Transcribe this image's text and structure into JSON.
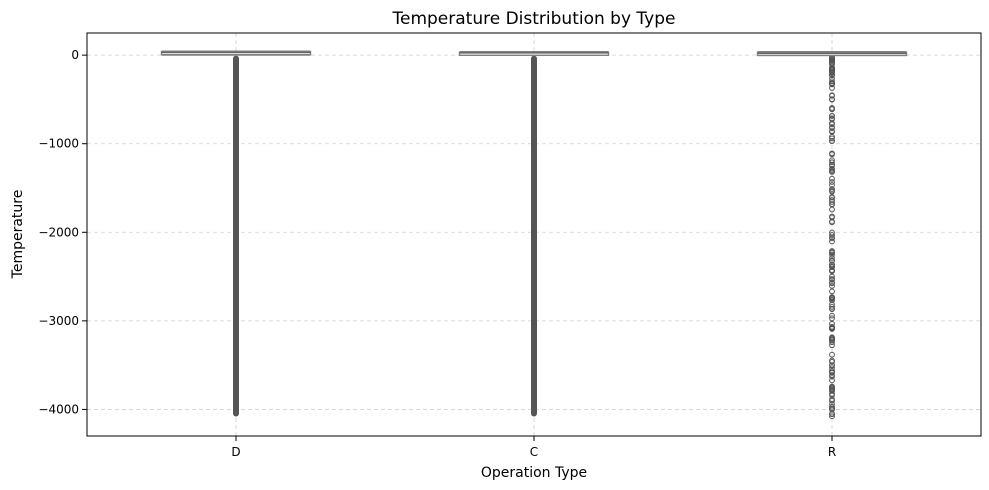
{
  "chart_data": {
    "type": "box",
    "title": "Temperature Distribution by Type",
    "xlabel": "Operation Type",
    "ylabel": "Temperature",
    "categories": [
      "D",
      "C",
      "R"
    ],
    "ylim": [
      -4300,
      250
    ],
    "yticks": [
      0,
      -1000,
      -2000,
      -3000,
      -4000
    ],
    "ytick_labels": [
      "0",
      "−1000",
      "−2000",
      "−3000",
      "−4000"
    ],
    "grid": true,
    "box_color": "#808080",
    "outlier_color": "#555555",
    "boxes": [
      {
        "category": "D",
        "whisker_low": 0,
        "q1": 20,
        "median": 30,
        "q3": 40,
        "whisker_high": 45,
        "outlier_min": -4080,
        "outlier_max": -5,
        "outliers_dense": true
      },
      {
        "category": "C",
        "whisker_low": 5,
        "q1": 18,
        "median": 25,
        "q3": 32,
        "whisker_high": 40,
        "outlier_min": -4080,
        "outlier_max": -5,
        "outliers_dense": true
      },
      {
        "category": "R",
        "whisker_low": 0,
        "q1": 12,
        "median": 20,
        "q3": 30,
        "whisker_high": 40,
        "outlier_min": -4080,
        "outlier_max": -5,
        "outliers_dense": false
      }
    ]
  }
}
